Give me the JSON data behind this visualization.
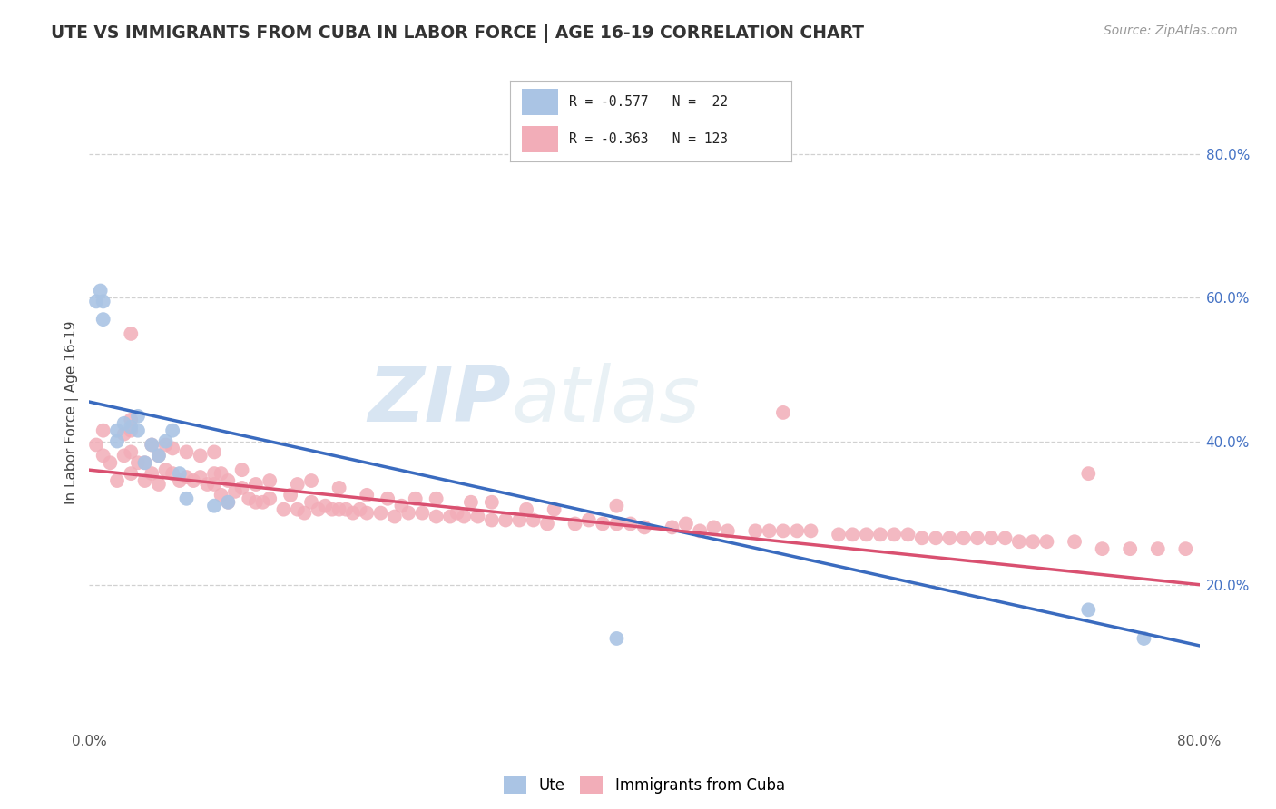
{
  "title": "UTE VS IMMIGRANTS FROM CUBA IN LABOR FORCE | AGE 16-19 CORRELATION CHART",
  "source": "Source: ZipAtlas.com",
  "ylabel": "In Labor Force | Age 16-19",
  "xlim": [
    0.0,
    0.8
  ],
  "ylim": [
    0.0,
    0.88
  ],
  "title_color": "#333333",
  "source_color": "#999999",
  "background_color": "#ffffff",
  "grid_color": "#cccccc",
  "legend_r1": "R = -0.577",
  "legend_n1": "N =  22",
  "legend_r2": "R = -0.363",
  "legend_n2": "N = 123",
  "ute_color": "#aac4e4",
  "cuba_color": "#f2adb8",
  "ute_line_color": "#3a6bbf",
  "cuba_line_color": "#d95070",
  "watermark_zip": "ZIP",
  "watermark_atlas": "atlas",
  "ute_scatter_x": [
    0.005,
    0.008,
    0.01,
    0.01,
    0.02,
    0.02,
    0.025,
    0.03,
    0.035,
    0.035,
    0.04,
    0.045,
    0.05,
    0.055,
    0.06,
    0.065,
    0.07,
    0.09,
    0.1,
    0.38,
    0.72,
    0.76
  ],
  "ute_scatter_y": [
    0.595,
    0.61,
    0.57,
    0.595,
    0.4,
    0.415,
    0.425,
    0.42,
    0.415,
    0.435,
    0.37,
    0.395,
    0.38,
    0.4,
    0.415,
    0.355,
    0.32,
    0.31,
    0.315,
    0.125,
    0.165,
    0.125
  ],
  "cuba_scatter_x": [
    0.005,
    0.01,
    0.01,
    0.015,
    0.02,
    0.025,
    0.025,
    0.03,
    0.03,
    0.03,
    0.03,
    0.035,
    0.04,
    0.04,
    0.045,
    0.045,
    0.05,
    0.05,
    0.055,
    0.055,
    0.06,
    0.06,
    0.065,
    0.07,
    0.07,
    0.075,
    0.08,
    0.08,
    0.085,
    0.09,
    0.09,
    0.09,
    0.095,
    0.095,
    0.1,
    0.1,
    0.105,
    0.11,
    0.11,
    0.115,
    0.12,
    0.12,
    0.125,
    0.13,
    0.13,
    0.14,
    0.145,
    0.15,
    0.15,
    0.155,
    0.16,
    0.16,
    0.165,
    0.17,
    0.175,
    0.18,
    0.18,
    0.185,
    0.19,
    0.195,
    0.2,
    0.2,
    0.21,
    0.215,
    0.22,
    0.225,
    0.23,
    0.235,
    0.24,
    0.25,
    0.25,
    0.26,
    0.265,
    0.27,
    0.275,
    0.28,
    0.29,
    0.29,
    0.3,
    0.31,
    0.315,
    0.32,
    0.33,
    0.335,
    0.35,
    0.36,
    0.37,
    0.38,
    0.38,
    0.39,
    0.4,
    0.42,
    0.43,
    0.44,
    0.45,
    0.46,
    0.48,
    0.49,
    0.5,
    0.51,
    0.52,
    0.54,
    0.55,
    0.56,
    0.57,
    0.58,
    0.59,
    0.6,
    0.61,
    0.62,
    0.63,
    0.64,
    0.65,
    0.66,
    0.67,
    0.68,
    0.69,
    0.71,
    0.73,
    0.75,
    0.77,
    0.79,
    0.72,
    0.5,
    0.03
  ],
  "cuba_scatter_y": [
    0.395,
    0.38,
    0.415,
    0.37,
    0.345,
    0.38,
    0.41,
    0.355,
    0.385,
    0.415,
    0.43,
    0.37,
    0.345,
    0.37,
    0.355,
    0.395,
    0.34,
    0.38,
    0.36,
    0.395,
    0.355,
    0.39,
    0.345,
    0.35,
    0.385,
    0.345,
    0.35,
    0.38,
    0.34,
    0.34,
    0.355,
    0.385,
    0.325,
    0.355,
    0.315,
    0.345,
    0.33,
    0.335,
    0.36,
    0.32,
    0.315,
    0.34,
    0.315,
    0.32,
    0.345,
    0.305,
    0.325,
    0.305,
    0.34,
    0.3,
    0.315,
    0.345,
    0.305,
    0.31,
    0.305,
    0.305,
    0.335,
    0.305,
    0.3,
    0.305,
    0.3,
    0.325,
    0.3,
    0.32,
    0.295,
    0.31,
    0.3,
    0.32,
    0.3,
    0.295,
    0.32,
    0.295,
    0.3,
    0.295,
    0.315,
    0.295,
    0.29,
    0.315,
    0.29,
    0.29,
    0.305,
    0.29,
    0.285,
    0.305,
    0.285,
    0.29,
    0.285,
    0.285,
    0.31,
    0.285,
    0.28,
    0.28,
    0.285,
    0.275,
    0.28,
    0.275,
    0.275,
    0.275,
    0.275,
    0.275,
    0.275,
    0.27,
    0.27,
    0.27,
    0.27,
    0.27,
    0.27,
    0.265,
    0.265,
    0.265,
    0.265,
    0.265,
    0.265,
    0.265,
    0.26,
    0.26,
    0.26,
    0.26,
    0.25,
    0.25,
    0.25,
    0.25,
    0.355,
    0.44,
    0.55
  ],
  "ute_line": {
    "x0": 0.0,
    "x1": 0.8,
    "y0": 0.455,
    "y1": 0.115
  },
  "cuba_line": {
    "x0": 0.0,
    "x1": 0.8,
    "y0": 0.36,
    "y1": 0.2
  }
}
